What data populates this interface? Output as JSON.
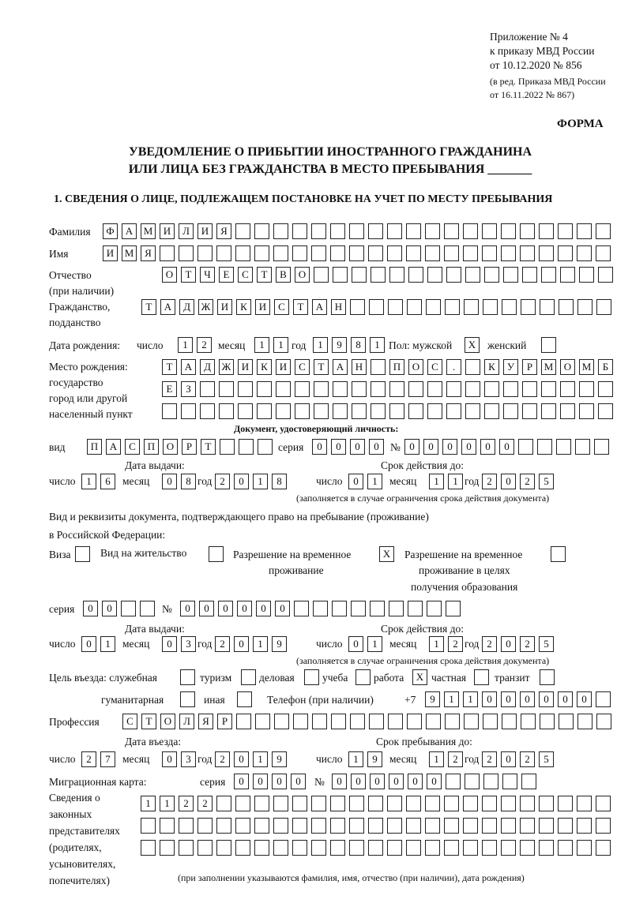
{
  "header": {
    "lines": [
      "Приложение № 4",
      "к приказу МВД России",
      "от 10.12.2020 № 856"
    ],
    "amend": [
      "(в ред. Приказа МВД России",
      "от 16.11.2022 № 867)"
    ],
    "forma": "ФОРМА"
  },
  "title": {
    "line1": "УВЕДОМЛЕНИЕ О ПРИБЫТИИ ИНОСТРАННОГО ГРАЖДАНИНА",
    "line2": "ИЛИ ЛИЦА БЕЗ ГРАЖДАНСТВА В МЕСТО ПРЕБЫВАНИЯ _______"
  },
  "section1": "1. СВЕДЕНИЯ О ЛИЦЕ, ПОДЛЕЖАЩЕМ ПОСТАНОВКЕ НА УЧЕТ ПО МЕСТУ ПРЕБЫВАНИЯ",
  "labels": {
    "surname": "Фамилия",
    "name": "Имя",
    "patronymic1": "Отчество",
    "patronymic2": "(при наличии)",
    "citizenship1": "Гражданство,",
    "citizenship2": "подданство",
    "birthdate": "Дата рождения:",
    "day": "число",
    "month": "месяц",
    "year": "год",
    "sex": "Пол: мужской",
    "female": "женский",
    "birthplace": [
      "Место рождения:",
      "государство",
      "город или другой",
      "населенный пункт"
    ],
    "id_doc": "Документ, удостоверяющий личность:",
    "kind": "вид",
    "series": "серия",
    "number": "№",
    "issue_date": "Дата выдачи:",
    "valid_until": "Срок действия до:",
    "note_validity": "(заполняется в случае ограничения срока действия документа)",
    "stay_doc1": "Вид и реквизиты документа, подтверждающего право на пребывание (проживание)",
    "stay_doc2": "в Российской Федерации:",
    "visa": "Виза",
    "residence": "Вид на жительство",
    "trp1": "Разрешение на временное",
    "trp2": "проживание",
    "trpe1": "Разрешение на временное",
    "trpe2": "проживание в целях",
    "trpe3": "получения образования",
    "purpose": "Цель въезда: служебная",
    "tourism": "туризм",
    "business": "деловая",
    "study": "учеба",
    "work": "работа",
    "private": "частная",
    "transit": "транзит",
    "humanitarian": "гуманитарная",
    "other": "иная",
    "phone": "Телефон (при наличии)",
    "phone_prefix": "+7",
    "profession": "Профессия",
    "entry_date": "Дата въезда:",
    "stay_until": "Срок пребывания до:",
    "migration_card": "Миграционная карта:",
    "reps": [
      "Сведения о",
      "законных",
      "представителях",
      "(родителях,",
      "усыновителях,",
      "попечителях)"
    ],
    "reps_note": "(при заполнении указываются фамилия, имя, отчество (при наличии), дата рождения)"
  },
  "values": {
    "surname": [
      "Ф",
      "А",
      "М",
      "И",
      "Л",
      "И",
      "Я"
    ],
    "name": [
      "И",
      "М",
      "Я"
    ],
    "patronymic": [
      "О",
      "Т",
      "Ч",
      "Е",
      "С",
      "Т",
      "В",
      "О"
    ],
    "citizenship": [
      "Т",
      "А",
      "Д",
      "Ж",
      "И",
      "К",
      "И",
      "С",
      "Т",
      "А",
      "Н"
    ],
    "birth_day": [
      "1",
      "2"
    ],
    "birth_month": [
      "1",
      "1"
    ],
    "birth_year": [
      "1",
      "9",
      "8",
      "1"
    ],
    "sex_male": "X",
    "sex_female": "",
    "birthplace1": [
      "Т",
      "А",
      "Д",
      "Ж",
      "И",
      "К",
      "И",
      "С",
      "Т",
      "А",
      "Н",
      "",
      "П",
      "О",
      "С",
      ".",
      "",
      "К",
      "У",
      "Р",
      "М",
      "О",
      "М",
      "Б"
    ],
    "birthplace2": [
      "Е",
      "З"
    ],
    "doc_kind": [
      "П",
      "А",
      "С",
      "П",
      "О",
      "Р",
      "Т"
    ],
    "doc_series": [
      "0",
      "0",
      "0",
      "0"
    ],
    "doc_number": [
      "0",
      "0",
      "0",
      "0",
      "0",
      "0"
    ],
    "doc_issue_day": [
      "1",
      "6"
    ],
    "doc_issue_month": [
      "0",
      "8"
    ],
    "doc_issue_year": [
      "2",
      "0",
      "1",
      "8"
    ],
    "doc_valid_day": [
      "0",
      "1"
    ],
    "doc_valid_month": [
      "1",
      "1"
    ],
    "doc_valid_year": [
      "2",
      "0",
      "2",
      "5"
    ],
    "visa": "",
    "residence": "",
    "trp": "X",
    "trpe": "",
    "stay_series": [
      "0",
      "0"
    ],
    "stay_number": [
      "0",
      "0",
      "0",
      "0",
      "0",
      "0"
    ],
    "stay_issue_day": [
      "0",
      "1"
    ],
    "stay_issue_month": [
      "0",
      "3"
    ],
    "stay_issue_year": [
      "2",
      "0",
      "1",
      "9"
    ],
    "stay_valid_day": [
      "0",
      "1"
    ],
    "stay_valid_month": [
      "1",
      "2"
    ],
    "stay_valid_year": [
      "2",
      "0",
      "2",
      "5"
    ],
    "purpose_service": "",
    "purpose_tourism": "",
    "purpose_business": "",
    "purpose_study": "",
    "purpose_work": "X",
    "purpose_private": "",
    "purpose_transit": "",
    "purpose_humanitarian": "",
    "purpose_other": "",
    "phone": [
      "9",
      "1",
      "1",
      "0",
      "0",
      "0",
      "0",
      "0",
      "0"
    ],
    "profession": [
      "С",
      "Т",
      "О",
      "Л",
      "Я",
      "Р"
    ],
    "entry_day": [
      "2",
      "7"
    ],
    "entry_month": [
      "0",
      "3"
    ],
    "entry_year": [
      "2",
      "0",
      "1",
      "9"
    ],
    "stay_until_day": [
      "1",
      "9"
    ],
    "stay_until_month": [
      "1",
      "2"
    ],
    "stay_until_year": [
      "2",
      "0",
      "2",
      "5"
    ],
    "mc_series": [
      "0",
      "0",
      "0",
      "0"
    ],
    "mc_number": [
      "0",
      "0",
      "0",
      "0",
      "0",
      "0"
    ],
    "reps1": [
      "1",
      "1",
      "2",
      "2"
    ]
  }
}
